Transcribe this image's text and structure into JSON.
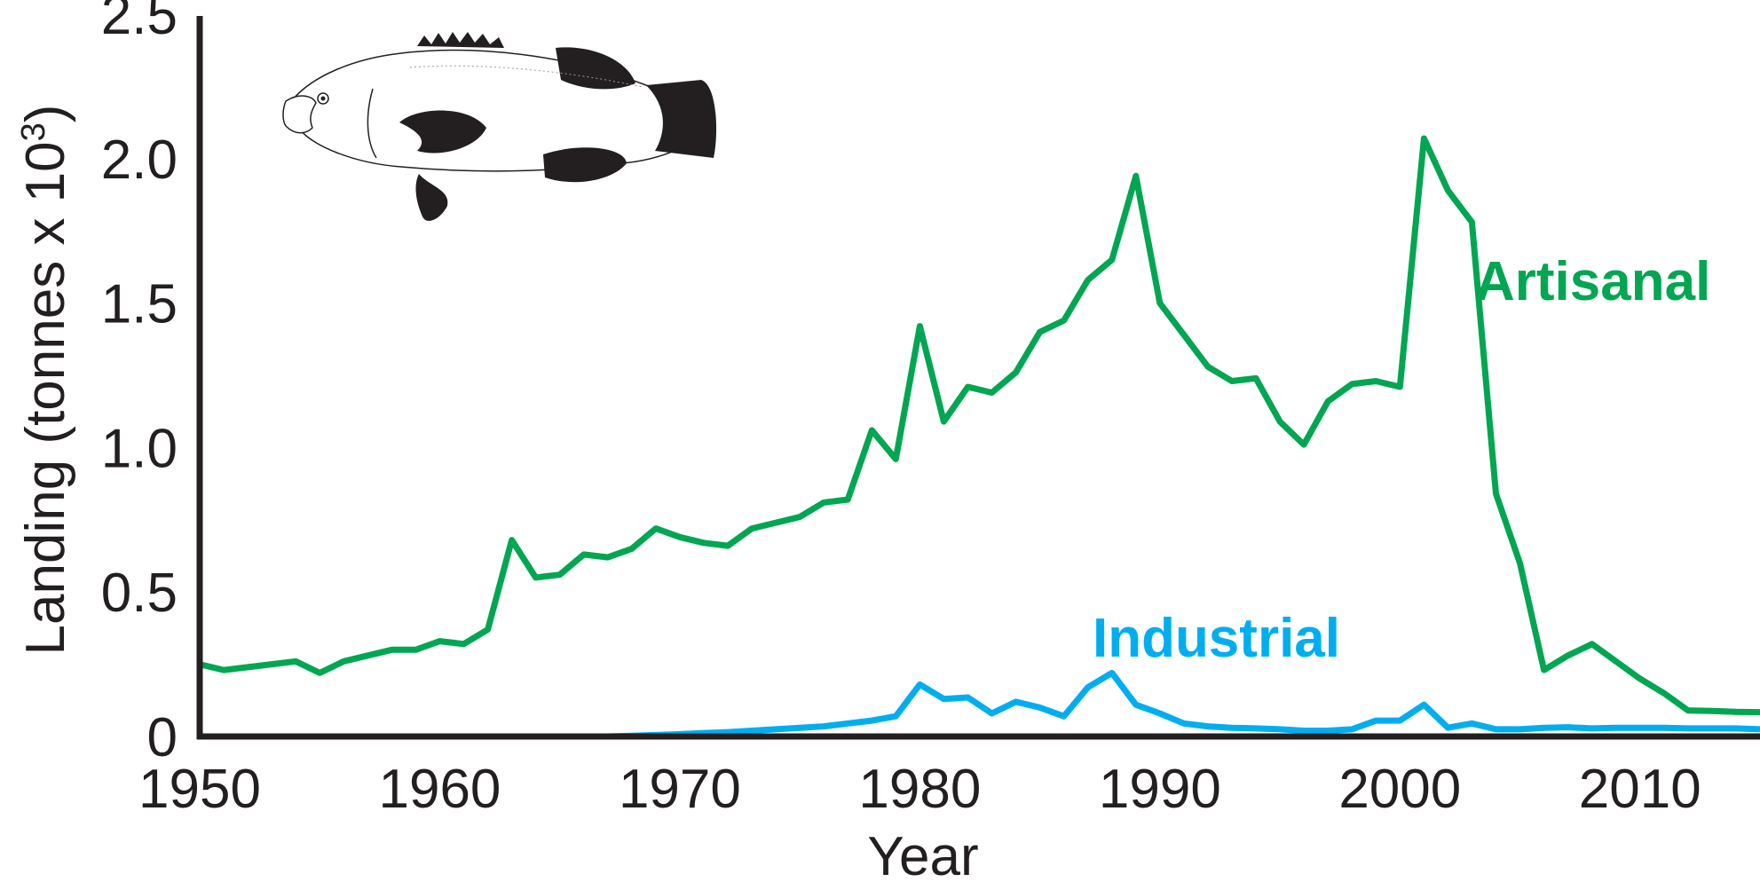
{
  "chart_data": {
    "type": "line",
    "xlabel": "Year",
    "ylabel": "Landing (tonnes x 10",
    "ylabel_superscript": "3",
    "ylabel_close": ")",
    "xlim": [
      1950,
      2015
    ],
    "ylim": [
      0,
      2.5
    ],
    "x_ticks": [
      1950,
      1960,
      1970,
      1980,
      1990,
      2000,
      2010
    ],
    "x_tick_labels": [
      "1950",
      "1960",
      "1970",
      "1980",
      "1990",
      "2000",
      "2010"
    ],
    "y_ticks": [
      0,
      0.5,
      1.0,
      1.5,
      2.0,
      2.5
    ],
    "y_tick_labels": [
      "0",
      "0.5",
      "1.0",
      "1.5",
      "2.0",
      "2.5"
    ],
    "grid": false,
    "legend": "inline labels",
    "series": [
      {
        "name": "Artisanal",
        "color": "#00a651",
        "x": [
          1950,
          1951,
          1952,
          1953,
          1954,
          1955,
          1956,
          1957,
          1958,
          1959,
          1960,
          1961,
          1962,
          1963,
          1964,
          1965,
          1966,
          1967,
          1968,
          1969,
          1970,
          1971,
          1972,
          1973,
          1974,
          1975,
          1976,
          1977,
          1978,
          1979,
          1980,
          1981,
          1982,
          1983,
          1984,
          1985,
          1986,
          1987,
          1988,
          1989,
          1990,
          1991,
          1992,
          1993,
          1994,
          1995,
          1996,
          1997,
          1998,
          1999,
          2000,
          2001,
          2002,
          2003,
          2004,
          2005,
          2006,
          2007,
          2008,
          2009,
          2010,
          2011,
          2012,
          2013,
          2014,
          2015
        ],
        "values": [
          0.25,
          0.23,
          0.24,
          0.25,
          0.26,
          0.22,
          0.26,
          0.28,
          0.3,
          0.3,
          0.33,
          0.32,
          0.37,
          0.68,
          0.55,
          0.56,
          0.63,
          0.62,
          0.65,
          0.72,
          0.69,
          0.67,
          0.66,
          0.72,
          0.74,
          0.76,
          0.81,
          0.82,
          1.06,
          0.96,
          1.42,
          1.09,
          1.21,
          1.19,
          1.26,
          1.4,
          1.44,
          1.58,
          1.65,
          1.94,
          1.5,
          1.39,
          1.28,
          1.23,
          1.24,
          1.09,
          1.01,
          1.16,
          1.22,
          1.23,
          1.21,
          2.07,
          1.89,
          1.78,
          0.84,
          0.6,
          0.23,
          0.28,
          0.32,
          0.26,
          0.2,
          0.15,
          0.09,
          0.088,
          0.085,
          0.084
        ]
      },
      {
        "name": "Industrial",
        "color": "#00aeef",
        "x": [
          1967,
          1968,
          1969,
          1970,
          1971,
          1972,
          1973,
          1974,
          1975,
          1976,
          1977,
          1978,
          1979,
          1980,
          1981,
          1982,
          1983,
          1984,
          1985,
          1986,
          1987,
          1988,
          1989,
          1990,
          1991,
          1992,
          1993,
          1994,
          1995,
          1996,
          1997,
          1998,
          1999,
          2000,
          2001,
          2002,
          2003,
          2004,
          2005,
          2006,
          2007,
          2008,
          2009,
          2010,
          2011,
          2012,
          2013,
          2014,
          2015
        ],
        "values": [
          0,
          0.002,
          0.005,
          0.008,
          0.012,
          0.015,
          0.02,
          0.025,
          0.03,
          0.035,
          0.045,
          0.055,
          0.07,
          0.18,
          0.13,
          0.135,
          0.08,
          0.12,
          0.1,
          0.07,
          0.17,
          0.22,
          0.11,
          0.08,
          0.045,
          0.035,
          0.03,
          0.028,
          0.025,
          0.02,
          0.02,
          0.025,
          0.055,
          0.055,
          0.11,
          0.03,
          0.045,
          0.025,
          0.025,
          0.03,
          0.032,
          0.028,
          0.03,
          0.03,
          0.03,
          0.028,
          0.028,
          0.028,
          0.025
        ]
      }
    ]
  },
  "illustration": {
    "icon": "grouper-fish-icon"
  }
}
